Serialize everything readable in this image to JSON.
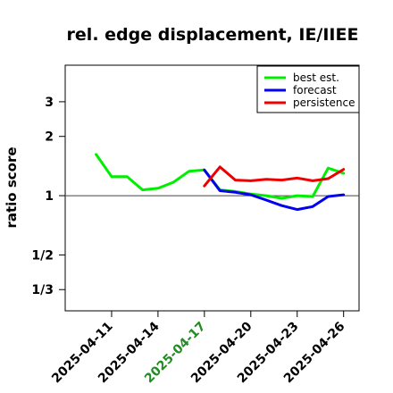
{
  "chart_data": {
    "type": "line",
    "title": "rel. edge displacement, IE/IIEE",
    "ylabel": "ratio score",
    "xlabel": "",
    "y_scale": "log",
    "ylim": [
      0.26,
      4.6
    ],
    "y_ticks": [
      {
        "value": 0.3333,
        "label": "1/3"
      },
      {
        "value": 0.5,
        "label": "1/2"
      },
      {
        "value": 1,
        "label": "1"
      },
      {
        "value": 2,
        "label": "2"
      },
      {
        "value": 3,
        "label": "3"
      }
    ],
    "x_ticks": [
      {
        "date": "2025-04-11",
        "label": "2025-04-11",
        "color": "#000000"
      },
      {
        "date": "2025-04-14",
        "label": "2025-04-14",
        "color": "#000000"
      },
      {
        "date": "2025-04-17",
        "label": "2025-04-17",
        "color": "#228B22"
      },
      {
        "date": "2025-04-20",
        "label": "2025-04-20",
        "color": "#000000"
      },
      {
        "date": "2025-04-23",
        "label": "2025-04-23",
        "color": "#000000"
      },
      {
        "date": "2025-04-26",
        "label": "2025-04-26",
        "color": "#000000"
      }
    ],
    "xlim": [
      "2025-04-08",
      "2025-04-27"
    ],
    "reference_line": 1,
    "legend_position": "top-right",
    "series": [
      {
        "name": "best est.",
        "color": "#00EE00",
        "points": [
          [
            "2025-04-10",
            1.62
          ],
          [
            "2025-04-11",
            1.25
          ],
          [
            "2025-04-12",
            1.25
          ],
          [
            "2025-04-13",
            1.07
          ],
          [
            "2025-04-14",
            1.09
          ],
          [
            "2025-04-15",
            1.17
          ],
          [
            "2025-04-16",
            1.33
          ],
          [
            "2025-04-17",
            1.35
          ],
          [
            "2025-04-18",
            1.07
          ],
          [
            "2025-04-19",
            1.05
          ],
          [
            "2025-04-20",
            1.02
          ],
          [
            "2025-04-21",
            1.0
          ],
          [
            "2025-04-22",
            0.97
          ],
          [
            "2025-04-23",
            1.0
          ],
          [
            "2025-04-24",
            0.99
          ],
          [
            "2025-04-25",
            1.38
          ],
          [
            "2025-04-26",
            1.3
          ]
        ]
      },
      {
        "name": "forecast",
        "color": "#0000EE",
        "points": [
          [
            "2025-04-17",
            1.35
          ],
          [
            "2025-04-18",
            1.06
          ],
          [
            "2025-04-19",
            1.04
          ],
          [
            "2025-04-20",
            1.01
          ],
          [
            "2025-04-21",
            0.95
          ],
          [
            "2025-04-22",
            0.89
          ],
          [
            "2025-04-23",
            0.85
          ],
          [
            "2025-04-24",
            0.88
          ],
          [
            "2025-04-25",
            0.99
          ],
          [
            "2025-04-26",
            1.01
          ]
        ]
      },
      {
        "name": "persistence",
        "color": "#EE0000",
        "points": [
          [
            "2025-04-17",
            1.12
          ],
          [
            "2025-04-18",
            1.4
          ],
          [
            "2025-04-19",
            1.2
          ],
          [
            "2025-04-20",
            1.19
          ],
          [
            "2025-04-21",
            1.21
          ],
          [
            "2025-04-22",
            1.2
          ],
          [
            "2025-04-23",
            1.23
          ],
          [
            "2025-04-24",
            1.19
          ],
          [
            "2025-04-25",
            1.22
          ],
          [
            "2025-04-26",
            1.36
          ]
        ]
      }
    ]
  }
}
